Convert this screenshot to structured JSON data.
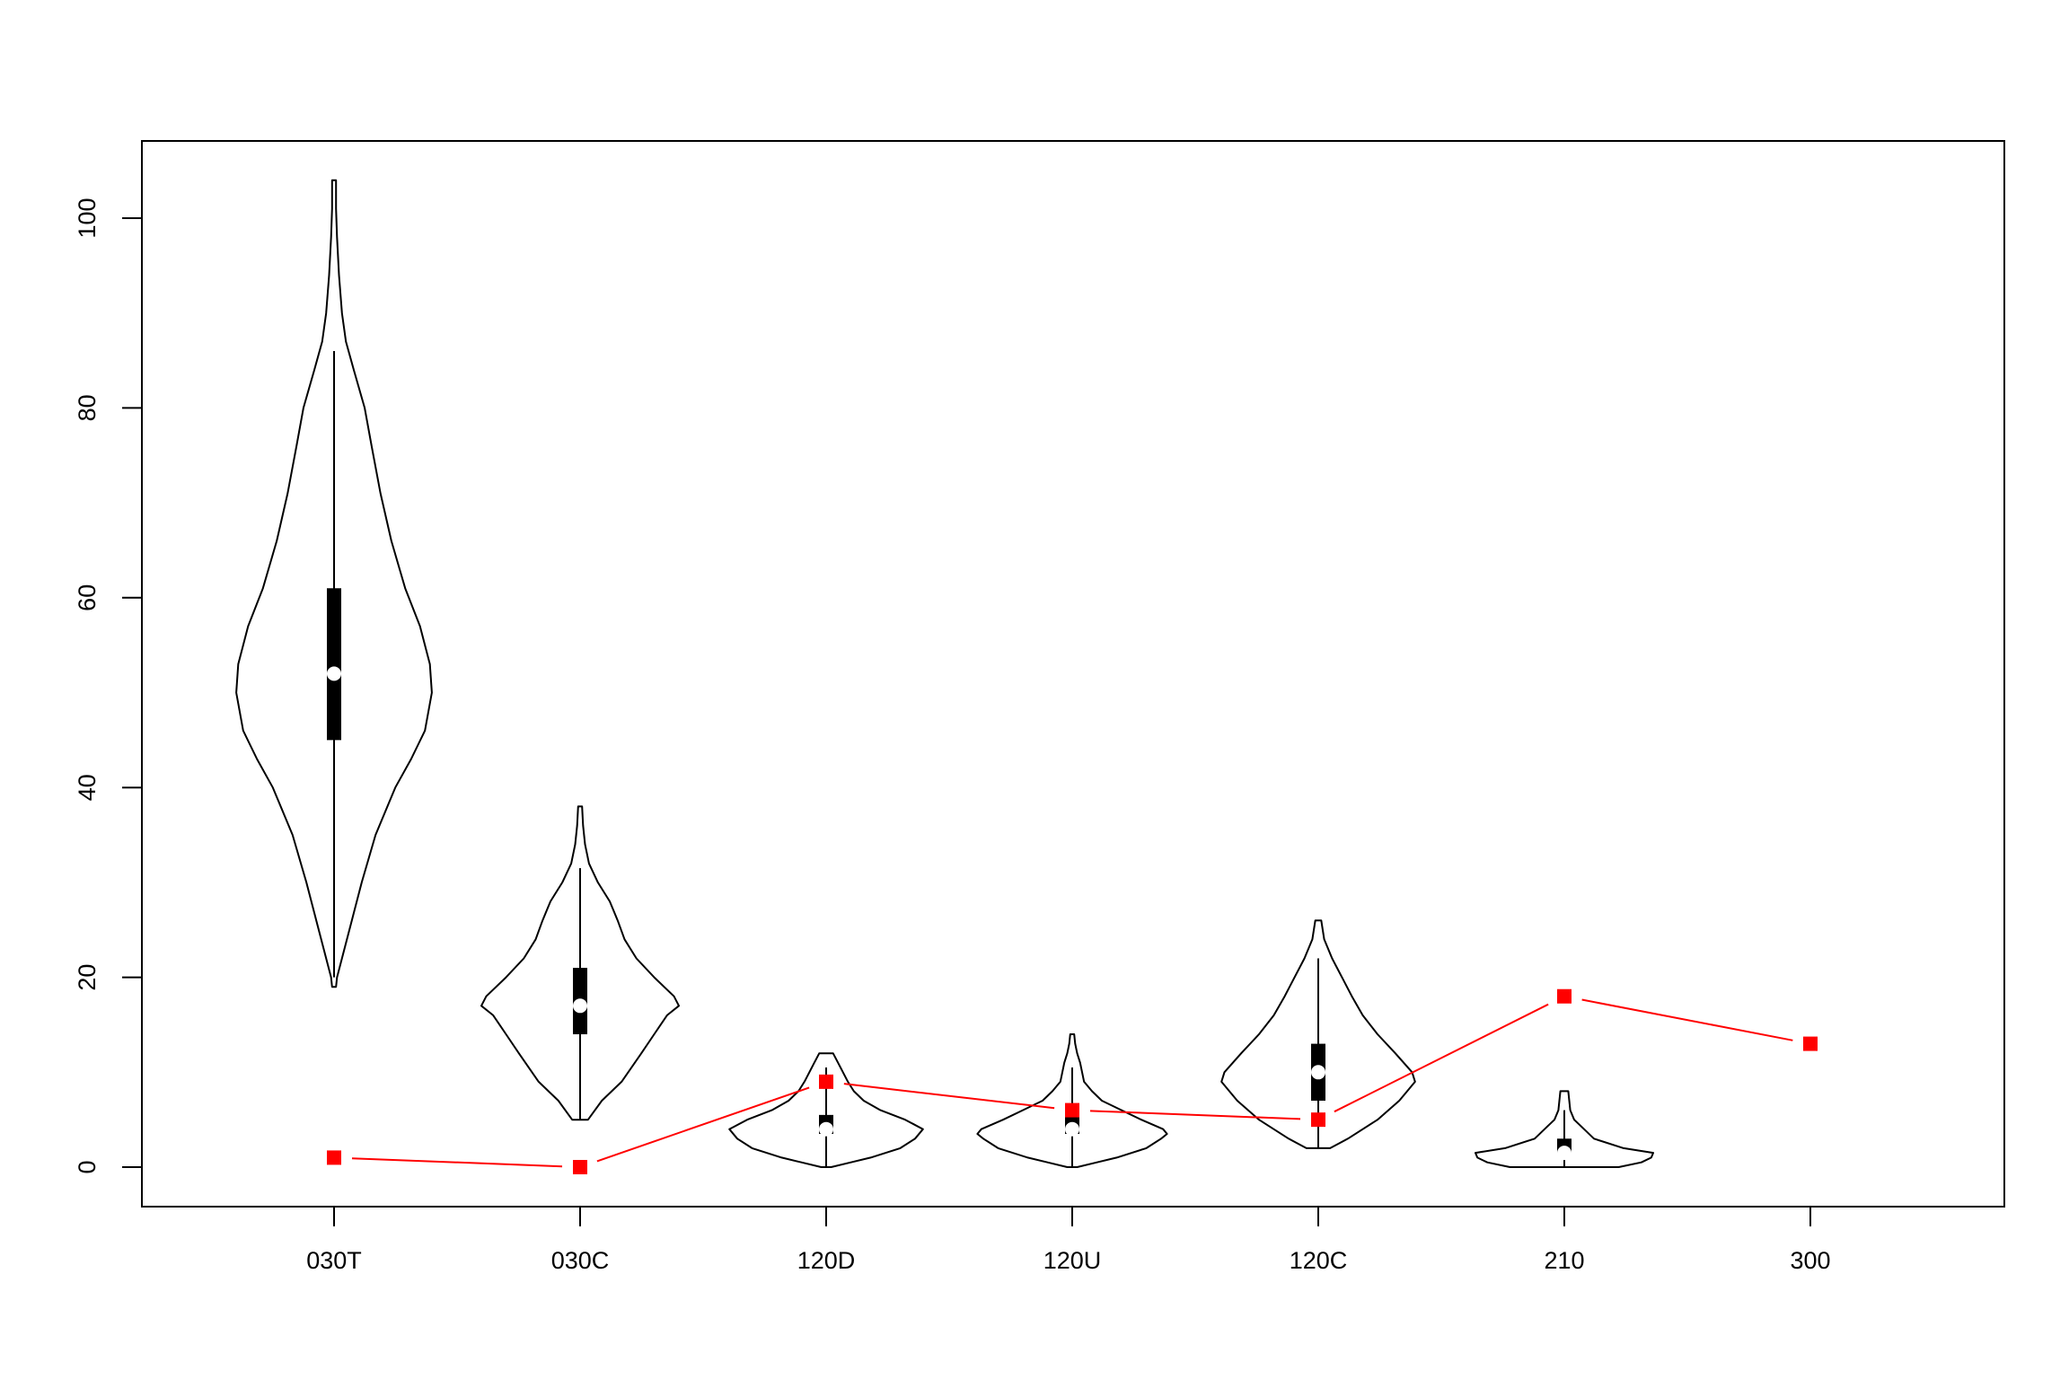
{
  "chart_data": {
    "type": "violin",
    "categories": [
      "030T",
      "030C",
      "120D",
      "120U",
      "120C",
      "210",
      "300"
    ],
    "ylim": [
      -4,
      107
    ],
    "yticks": [
      0,
      20,
      40,
      60,
      80,
      100
    ],
    "ytick_labels": [
      "0",
      "20",
      "40",
      "60",
      "80",
      "100"
    ],
    "title": "",
    "xlabel": "",
    "ylabel": "",
    "grid": false,
    "colors": {
      "violin": "#000000",
      "median": "#ffffff",
      "overlay": "#ff0000"
    },
    "violins": [
      {
        "category": "030T",
        "box": {
          "whisker_low": 20,
          "q1": 45,
          "median": 52,
          "q3": 61,
          "whisker_high": 86
        },
        "density": [
          [
            19,
            0.02
          ],
          [
            20,
            0.03
          ],
          [
            22,
            0.08
          ],
          [
            26,
            0.18
          ],
          [
            30,
            0.28
          ],
          [
            35,
            0.42
          ],
          [
            40,
            0.62
          ],
          [
            43,
            0.78
          ],
          [
            46,
            0.92
          ],
          [
            50,
            0.99
          ],
          [
            53,
            0.97
          ],
          [
            57,
            0.87
          ],
          [
            61,
            0.72
          ],
          [
            66,
            0.58
          ],
          [
            71,
            0.47
          ],
          [
            76,
            0.38
          ],
          [
            80,
            0.31
          ],
          [
            84,
            0.2
          ],
          [
            87,
            0.12
          ],
          [
            90,
            0.08
          ],
          [
            94,
            0.05
          ],
          [
            98,
            0.03
          ],
          [
            101,
            0.02
          ],
          [
            104,
            0.02
          ]
        ]
      },
      {
        "category": "030C",
        "box": {
          "whisker_low": 5,
          "q1": 14,
          "median": 17,
          "q3": 21,
          "whisker_high": 31.5
        },
        "density": [
          [
            5,
            0.08
          ],
          [
            7,
            0.22
          ],
          [
            9,
            0.42
          ],
          [
            12,
            0.62
          ],
          [
            14,
            0.75
          ],
          [
            16,
            0.88
          ],
          [
            17,
            1.0
          ],
          [
            18,
            0.95
          ],
          [
            20,
            0.75
          ],
          [
            22,
            0.57
          ],
          [
            24,
            0.45
          ],
          [
            26,
            0.38
          ],
          [
            28,
            0.3
          ],
          [
            30,
            0.18
          ],
          [
            32,
            0.09
          ],
          [
            34,
            0.05
          ],
          [
            36,
            0.03
          ],
          [
            38,
            0.02
          ]
        ]
      },
      {
        "category": "120D",
        "box": {
          "whisker_low": 0,
          "q1": 3.5,
          "median": 4,
          "q3": 5.5,
          "whisker_high": 10.5
        },
        "density": [
          [
            0,
            0.05
          ],
          [
            0.5,
            0.25
          ],
          [
            1,
            0.45
          ],
          [
            2,
            0.75
          ],
          [
            3,
            0.9
          ],
          [
            4,
            0.98
          ],
          [
            5,
            0.8
          ],
          [
            6,
            0.55
          ],
          [
            7,
            0.38
          ],
          [
            8,
            0.28
          ],
          [
            9,
            0.22
          ],
          [
            10,
            0.17
          ],
          [
            11,
            0.12
          ],
          [
            12,
            0.07
          ]
        ]
      },
      {
        "category": "120U",
        "box": {
          "whisker_low": 0,
          "q1": 3.5,
          "median": 4,
          "q3": 5.5,
          "whisker_high": 10.5
        },
        "density": [
          [
            0,
            0.05
          ],
          [
            0.5,
            0.25
          ],
          [
            1,
            0.45
          ],
          [
            2,
            0.75
          ],
          [
            3,
            0.9
          ],
          [
            3.5,
            0.96
          ],
          [
            4,
            0.92
          ],
          [
            5,
            0.7
          ],
          [
            6,
            0.5
          ],
          [
            7,
            0.3
          ],
          [
            8,
            0.2
          ],
          [
            9,
            0.12
          ],
          [
            10,
            0.1
          ],
          [
            11,
            0.08
          ],
          [
            12,
            0.05
          ],
          [
            13,
            0.03
          ],
          [
            14,
            0.02
          ]
        ]
      },
      {
        "category": "120C",
        "box": {
          "whisker_low": 2,
          "q1": 7,
          "median": 10,
          "q3": 13,
          "whisker_high": 22
        },
        "density": [
          [
            2,
            0.12
          ],
          [
            3,
            0.3
          ],
          [
            5,
            0.6
          ],
          [
            7,
            0.82
          ],
          [
            9,
            0.98
          ],
          [
            10,
            0.95
          ],
          [
            12,
            0.78
          ],
          [
            14,
            0.6
          ],
          [
            16,
            0.45
          ],
          [
            18,
            0.34
          ],
          [
            20,
            0.24
          ],
          [
            22,
            0.14
          ],
          [
            24,
            0.06
          ],
          [
            26,
            0.03
          ]
        ]
      },
      {
        "category": "210",
        "box": {
          "whisker_low": 0,
          "q1": 1.5,
          "median": 1.5,
          "q3": 3,
          "whisker_high": 6
        },
        "density": [
          [
            0,
            0.55
          ],
          [
            0.5,
            0.78
          ],
          [
            1,
            0.88
          ],
          [
            1.5,
            0.9
          ],
          [
            2,
            0.6
          ],
          [
            3,
            0.3
          ],
          [
            4,
            0.2
          ],
          [
            5,
            0.1
          ],
          [
            6,
            0.06
          ],
          [
            7,
            0.05
          ],
          [
            8,
            0.04
          ]
        ]
      }
    ],
    "series": [
      {
        "values": [
          1,
          0,
          9,
          6,
          5,
          18,
          13
        ]
      }
    ]
  }
}
